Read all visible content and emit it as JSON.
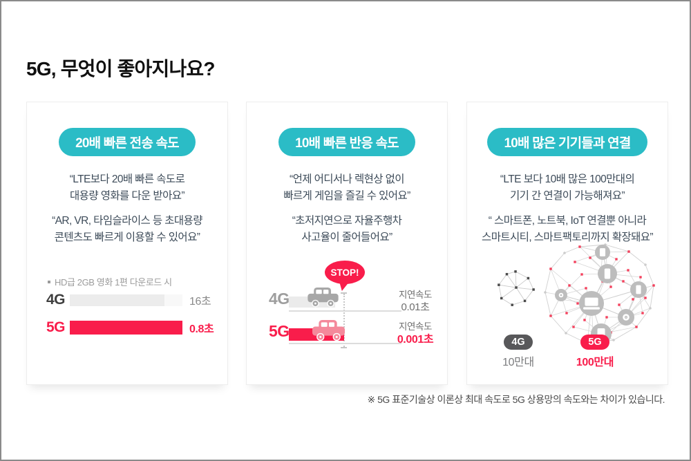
{
  "header": {
    "title": "5G, 무엇이 좋아지나요?"
  },
  "footnote": "※ 5G 표준기술상 이론상 최대 속도로 5G 상용망의 속도와는 차이가 있습니다.",
  "colors": {
    "teal": "#2bbcc6",
    "red": "#f91d4b",
    "dark_pill": "#58585a",
    "pink_car": "#f4899b",
    "gray_car": "#a7a7a7"
  },
  "cards": [
    {
      "badge": "20배 빠른 전송 속도",
      "quote1": "“LTE보다 20배 빠른 속도로\n대용량 영화를 다운 받아요”",
      "quote2": "“AR, VR, 타임슬라이스 등 초대용량\n콘텐츠도 빠르게 이용할 수 있어요”",
      "legend": "HD급 2GB 영화 1편 다운로드 시",
      "chart": {
        "type": "bar",
        "rows": [
          {
            "label": "4G",
            "value_label": "16초",
            "value": 16
          },
          {
            "label": "5G",
            "value_label": "0.8초",
            "value": 0.8
          }
        ]
      }
    },
    {
      "badge": "10배 빠른 반응 속도",
      "quote1": "“언제 어디서나 렉현상 없이\n빠르게 게임을 즐길 수 있어요”",
      "quote2": "“초저지연으로 자율주행차\n사고율이 줄어들어요”",
      "stop": "STOP!",
      "lanes": [
        {
          "label": "4G",
          "delay_title": "지연속도",
          "delay_value": "0.01초"
        },
        {
          "label": "5G",
          "delay_title": "지연속도",
          "delay_value": "0.001초"
        }
      ]
    },
    {
      "badge": "10배 많은 기기들과 연결",
      "quote1": "“LTE 보다 10배 많은 100만대의\n기기 간 연결이 가능해져요”",
      "quote2": "“ 스마트폰, 노트북, IoT 연결뿐 아니라\n스마트시티, 스마트팩토리까지 확장돼요”",
      "networks": [
        {
          "label": "4G",
          "count": "10만대"
        },
        {
          "label": "5G",
          "count": "100만대"
        }
      ]
    }
  ],
  "chart_data": [
    {
      "type": "bar",
      "title": "20배 빠른 전송 속도 · HD급 2GB 영화 1편 다운로드 시",
      "categories": [
        "4G",
        "5G"
      ],
      "values": [
        16,
        0.8
      ],
      "unit": "초",
      "value_labels": [
        "16초",
        "0.8초"
      ]
    },
    {
      "type": "bar",
      "title": "10배 빠른 반응 속도 · 지연속도",
      "categories": [
        "4G",
        "5G"
      ],
      "values": [
        0.01,
        0.001
      ],
      "unit": "초",
      "value_labels": [
        "0.01초",
        "0.001초"
      ]
    },
    {
      "type": "bar",
      "title": "10배 많은 기기들과 연결",
      "categories": [
        "4G",
        "5G"
      ],
      "values": [
        100000,
        1000000
      ],
      "unit": "대",
      "value_labels": [
        "10만대",
        "100만대"
      ]
    }
  ]
}
